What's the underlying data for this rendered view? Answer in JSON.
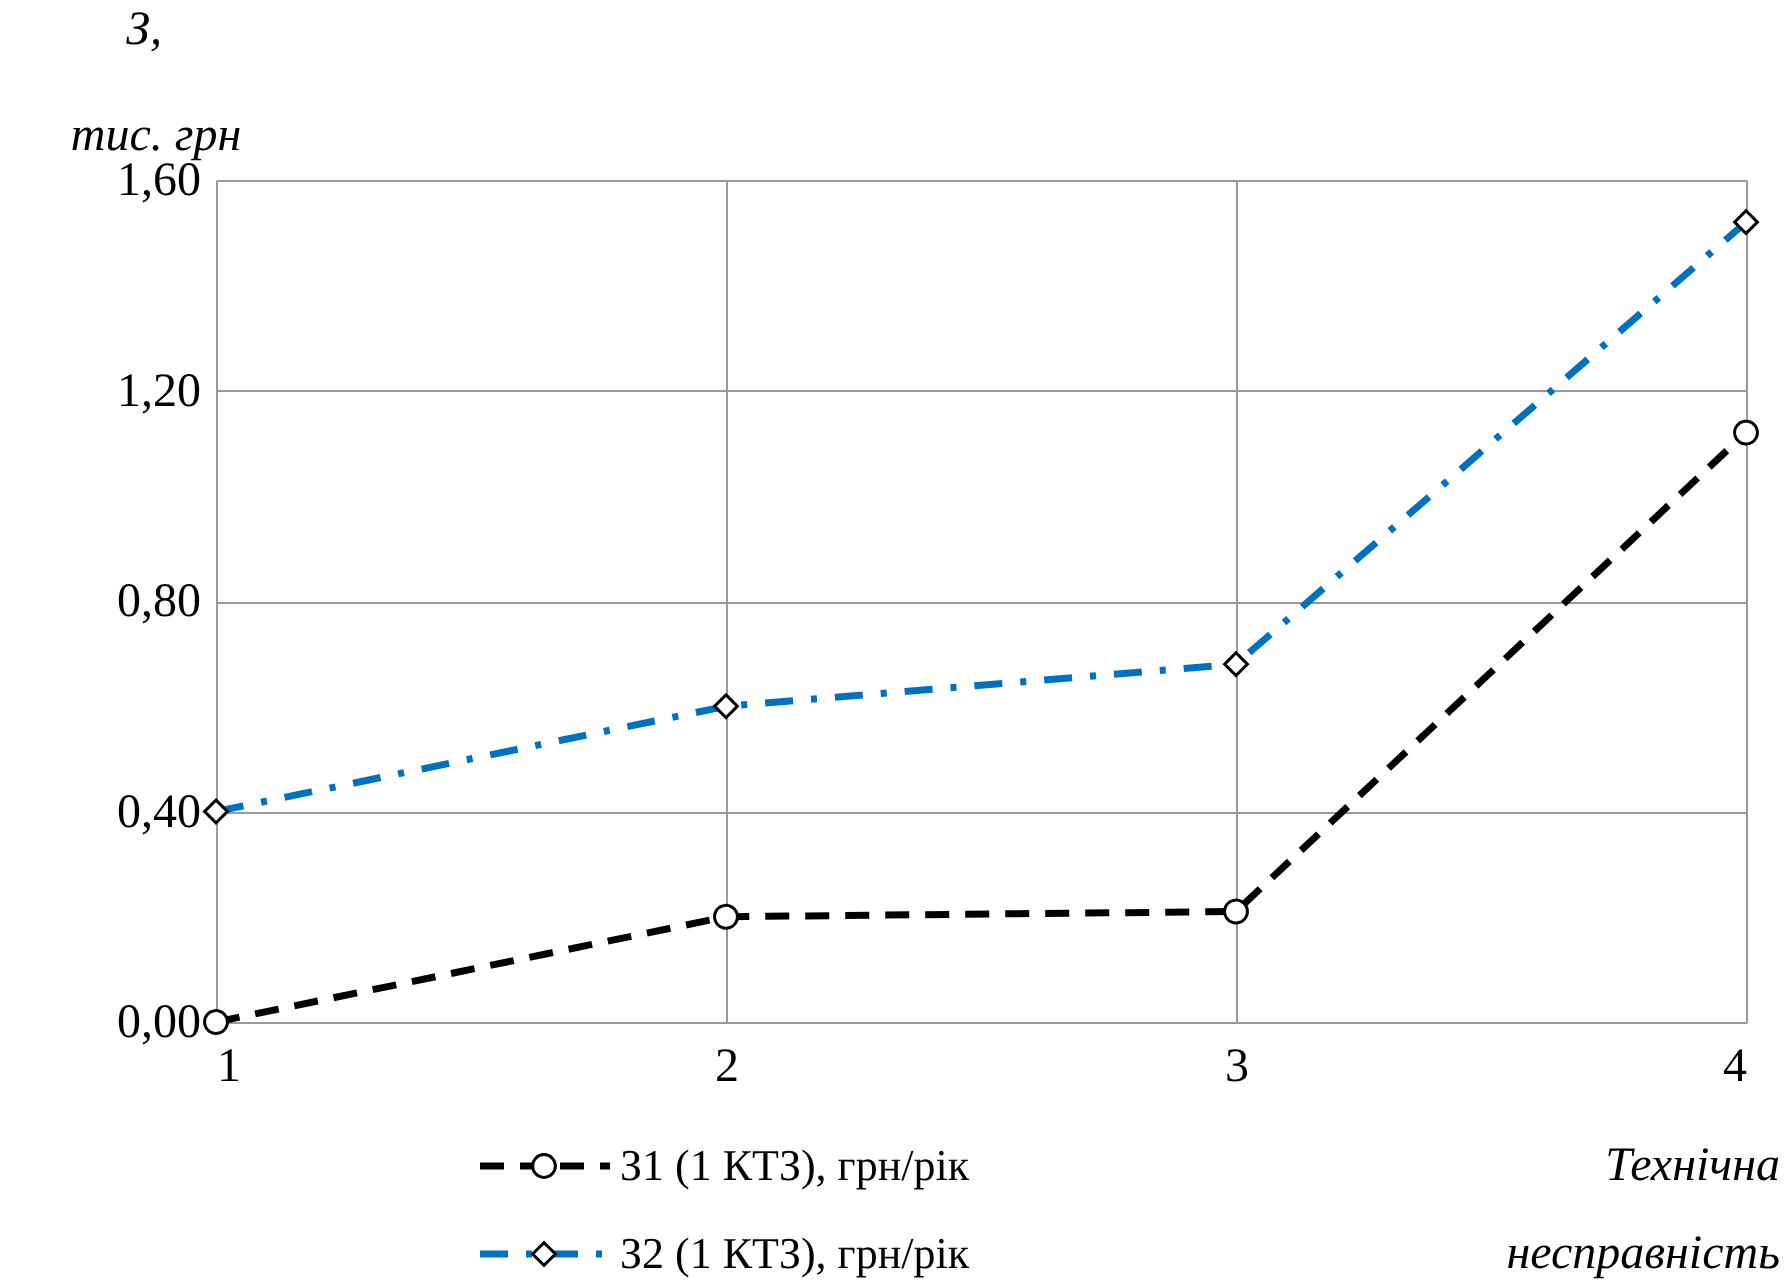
{
  "chart_data": {
    "type": "line",
    "xlabel": "Технічна\nнесправність",
    "ylabel": "З,\nтис. грн",
    "x": [
      1,
      2,
      3,
      4
    ],
    "series": [
      {
        "name": "З1 (1 КТЗ), грн/рік",
        "color": "#000000",
        "values": [
          0.0,
          0.2,
          0.21,
          1.12
        ],
        "marker": "circle",
        "line_style": "dashed"
      },
      {
        "name": "З2 (1 КТЗ), грн/рік",
        "color": "#0070c0",
        "values": [
          0.4,
          0.6,
          0.68,
          1.52
        ],
        "marker": "diamond",
        "line_style": "dashdot"
      }
    ],
    "xlim": [
      1,
      4
    ],
    "xticks": [
      1,
      2,
      3,
      4
    ],
    "ylim": [
      0,
      1.6
    ],
    "yticks": [
      {
        "value": 0,
        "label": "0,00"
      },
      {
        "value": 0.4,
        "label": "0,40"
      },
      {
        "value": 0.8,
        "label": "0,80"
      },
      {
        "value": 1.2,
        "label": "1,20"
      },
      {
        "value": 1.6,
        "label": "1,60"
      }
    ],
    "grid": true,
    "legend": "bottom"
  }
}
